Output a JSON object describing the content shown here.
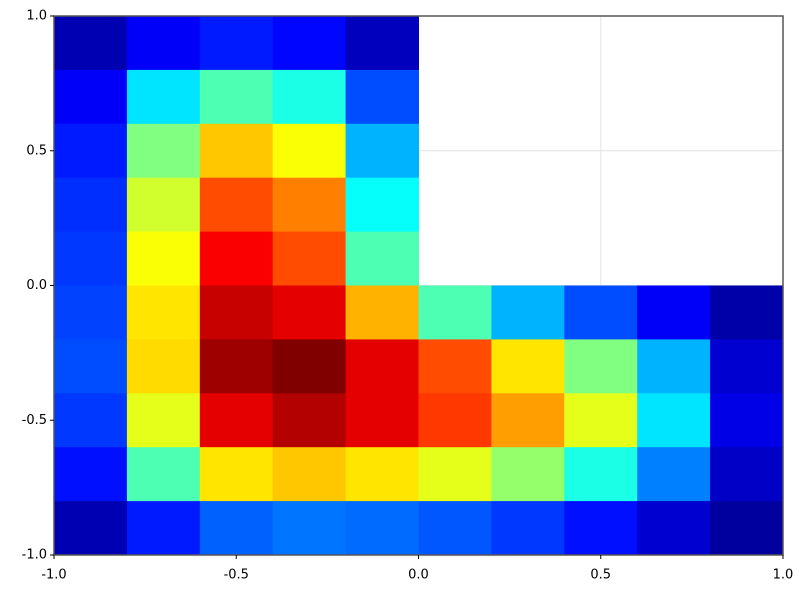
{
  "chart_data": {
    "type": "heatmap",
    "colormap": "jet",
    "grid": true,
    "x": [
      -0.9,
      -0.7,
      -0.5,
      -0.3,
      -0.1,
      0.1,
      0.3,
      0.5,
      0.7,
      0.9
    ],
    "y": [
      0.9,
      0.7,
      0.5,
      0.3,
      0.1,
      -0.1,
      -0.3,
      -0.5,
      -0.7,
      -0.9
    ],
    "z": [
      [
        0.05,
        0.12,
        0.15,
        0.13,
        0.06,
        null,
        null,
        null,
        null,
        null
      ],
      [
        0.12,
        0.35,
        0.45,
        0.4,
        0.2,
        null,
        null,
        null,
        null,
        null
      ],
      [
        0.15,
        0.5,
        0.68,
        0.62,
        0.3,
        null,
        null,
        null,
        null,
        null
      ],
      [
        0.17,
        0.58,
        0.8,
        0.75,
        0.38,
        null,
        null,
        null,
        null,
        null
      ],
      [
        0.18,
        0.62,
        0.88,
        0.8,
        0.45,
        null,
        null,
        null,
        null,
        null
      ],
      [
        0.19,
        0.65,
        0.93,
        0.9,
        0.7,
        0.45,
        0.3,
        0.2,
        0.12,
        0.04
      ],
      [
        0.2,
        0.66,
        0.97,
        1.0,
        0.9,
        0.8,
        0.65,
        0.5,
        0.3,
        0.08
      ],
      [
        0.18,
        0.6,
        0.9,
        0.95,
        0.9,
        0.82,
        0.72,
        0.6,
        0.35,
        0.1
      ],
      [
        0.14,
        0.45,
        0.65,
        0.68,
        0.65,
        0.6,
        0.52,
        0.4,
        0.25,
        0.07
      ],
      [
        0.05,
        0.15,
        0.22,
        0.24,
        0.23,
        0.21,
        0.18,
        0.14,
        0.08,
        0.03
      ]
    ],
    "zlim": [
      0,
      1
    ],
    "xlim": [
      -1,
      1
    ],
    "ylim": [
      -1,
      1
    ],
    "xticks": [
      {
        "value": -1,
        "label": "-1.0"
      },
      {
        "value": -0.5,
        "label": "-0.5"
      },
      {
        "value": 0,
        "label": "0.0"
      },
      {
        "value": 0.5,
        "label": "0.5"
      },
      {
        "value": 1,
        "label": "1.0"
      }
    ],
    "yticks": [
      {
        "value": -1,
        "label": "-1.0"
      },
      {
        "value": -0.5,
        "label": "-0.5"
      },
      {
        "value": 0,
        "label": "0.0"
      },
      {
        "value": 0.5,
        "label": "0.5"
      },
      {
        "value": 1,
        "label": "1.0"
      }
    ]
  }
}
